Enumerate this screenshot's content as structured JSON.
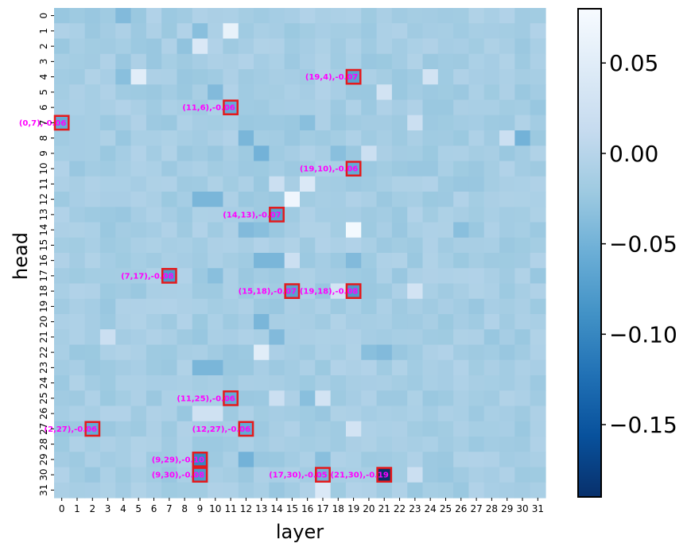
{
  "chart_data": {
    "type": "heatmap",
    "xlabel": "layer",
    "ylabel": "head",
    "n_layers": 32,
    "n_heads": 32,
    "x_ticks": [
      "0",
      "1",
      "2",
      "3",
      "4",
      "5",
      "6",
      "7",
      "8",
      "9",
      "10",
      "11",
      "12",
      "13",
      "14",
      "15",
      "16",
      "17",
      "18",
      "19",
      "20",
      "21",
      "22",
      "23",
      "24",
      "25",
      "26",
      "27",
      "28",
      "29",
      "30",
      "31"
    ],
    "y_ticks": [
      "0",
      "1",
      "2",
      "3",
      "4",
      "5",
      "6",
      "7",
      "8",
      "9",
      "10",
      "11",
      "12",
      "13",
      "14",
      "15",
      "16",
      "17",
      "18",
      "19",
      "20",
      "21",
      "22",
      "23",
      "24",
      "25",
      "26",
      "27",
      "28",
      "29",
      "30",
      "31"
    ],
    "colormap": "Blues_r",
    "vmin": -0.19,
    "vmax": 0.08,
    "colorbar_ticks": [
      {
        "value": 0.05,
        "label": "0.05"
      },
      {
        "value": 0.0,
        "label": "0.00"
      },
      {
        "value": -0.05,
        "label": "−0.05"
      },
      {
        "value": -0.1,
        "label": "−0.10"
      },
      {
        "value": -0.15,
        "label": "−0.15"
      }
    ],
    "background_value": -0.015,
    "cells": [
      {
        "layer": 4,
        "head": 0,
        "value": -0.04
      },
      {
        "layer": 11,
        "head": 1,
        "value": 0.06
      },
      {
        "layer": 9,
        "head": 1,
        "value": -0.035
      },
      {
        "layer": 9,
        "head": 2,
        "value": 0.04
      },
      {
        "layer": 8,
        "head": 2,
        "value": -0.03
      },
      {
        "layer": 5,
        "head": 4,
        "value": 0.05
      },
      {
        "layer": 4,
        "head": 4,
        "value": -0.035
      },
      {
        "layer": 24,
        "head": 4,
        "value": 0.03
      },
      {
        "layer": 10,
        "head": 5,
        "value": -0.04
      },
      {
        "layer": 21,
        "head": 5,
        "value": 0.03
      },
      {
        "layer": 23,
        "head": 7,
        "value": 0.02
      },
      {
        "layer": 16,
        "head": 7,
        "value": -0.035
      },
      {
        "layer": 12,
        "head": 8,
        "value": -0.045
      },
      {
        "layer": 30,
        "head": 8,
        "value": -0.05
      },
      {
        "layer": 29,
        "head": 8,
        "value": 0.02
      },
      {
        "layer": 13,
        "head": 9,
        "value": -0.05
      },
      {
        "layer": 18,
        "head": 9,
        "value": -0.035
      },
      {
        "layer": 20,
        "head": 9,
        "value": 0.02
      },
      {
        "layer": 14,
        "head": 11,
        "value": 0.02
      },
      {
        "layer": 16,
        "head": 11,
        "value": 0.04
      },
      {
        "layer": 9,
        "head": 12,
        "value": -0.045
      },
      {
        "layer": 10,
        "head": 12,
        "value": -0.045
      },
      {
        "layer": 15,
        "head": 12,
        "value": 0.07
      },
      {
        "layer": 13,
        "head": 14,
        "value": -0.035
      },
      {
        "layer": 19,
        "head": 14,
        "value": 0.075
      },
      {
        "layer": 12,
        "head": 14,
        "value": -0.04
      },
      {
        "layer": 26,
        "head": 14,
        "value": -0.035
      },
      {
        "layer": 13,
        "head": 16,
        "value": -0.045
      },
      {
        "layer": 14,
        "head": 16,
        "value": -0.045
      },
      {
        "layer": 15,
        "head": 16,
        "value": 0.02
      },
      {
        "layer": 19,
        "head": 16,
        "value": -0.04
      },
      {
        "layer": 10,
        "head": 17,
        "value": -0.035
      },
      {
        "layer": 18,
        "head": 18,
        "value": 0.03
      },
      {
        "layer": 23,
        "head": 18,
        "value": 0.03
      },
      {
        "layer": 13,
        "head": 20,
        "value": -0.045
      },
      {
        "layer": 14,
        "head": 21,
        "value": -0.04
      },
      {
        "layer": 3,
        "head": 21,
        "value": 0.02
      },
      {
        "layer": 13,
        "head": 22,
        "value": 0.05
      },
      {
        "layer": 20,
        "head": 22,
        "value": -0.035
      },
      {
        "layer": 21,
        "head": 22,
        "value": -0.04
      },
      {
        "layer": 9,
        "head": 23,
        "value": -0.045
      },
      {
        "layer": 10,
        "head": 23,
        "value": -0.045
      },
      {
        "layer": 14,
        "head": 25,
        "value": 0.02
      },
      {
        "layer": 17,
        "head": 25,
        "value": 0.03
      },
      {
        "layer": 16,
        "head": 25,
        "value": -0.035
      },
      {
        "layer": 9,
        "head": 26,
        "value": 0.025
      },
      {
        "layer": 10,
        "head": 26,
        "value": 0.025
      },
      {
        "layer": 19,
        "head": 27,
        "value": 0.03
      },
      {
        "layer": 12,
        "head": 29,
        "value": -0.05
      },
      {
        "layer": 17,
        "head": 29,
        "value": -0.035
      },
      {
        "layer": 23,
        "head": 30,
        "value": 0.02
      },
      {
        "layer": 17,
        "head": 31,
        "value": 0.04
      }
    ],
    "annotations": [
      {
        "layer": 19,
        "head": 4,
        "value": -0.07,
        "label": "(19,4),-0.07"
      },
      {
        "layer": 11,
        "head": 6,
        "value": -0.06,
        "label": "(11,6),-0.06"
      },
      {
        "layer": 0,
        "head": 7,
        "value": -0.06,
        "label": "(0,7),-0.06"
      },
      {
        "layer": 19,
        "head": 10,
        "value": -0.06,
        "label": "(19,10),-0.06"
      },
      {
        "layer": 14,
        "head": 13,
        "value": -0.07,
        "label": "(14,13),-0.07"
      },
      {
        "layer": 7,
        "head": 17,
        "value": -0.08,
        "label": "(7,17),-0.08"
      },
      {
        "layer": 15,
        "head": 18,
        "value": -0.07,
        "label": "(15,18),-0.07"
      },
      {
        "layer": 19,
        "head": 18,
        "value": -0.08,
        "label": "(19,18),-0.08"
      },
      {
        "layer": 11,
        "head": 25,
        "value": -0.06,
        "label": "(11,25),-0.06"
      },
      {
        "layer": 2,
        "head": 27,
        "value": -0.06,
        "label": "(2,27),-0.06"
      },
      {
        "layer": 12,
        "head": 27,
        "value": -0.06,
        "label": "(12,27),-0.06"
      },
      {
        "layer": 9,
        "head": 29,
        "value": -0.1,
        "label": "(9,29),-0.10"
      },
      {
        "layer": 9,
        "head": 30,
        "value": -0.08,
        "label": "(9,30),-0.08"
      },
      {
        "layer": 17,
        "head": 30,
        "value": -0.05,
        "label": "(17,30),-0.05"
      },
      {
        "layer": 21,
        "head": 30,
        "value": -0.19,
        "label": "(21,30),-0.19"
      }
    ]
  }
}
